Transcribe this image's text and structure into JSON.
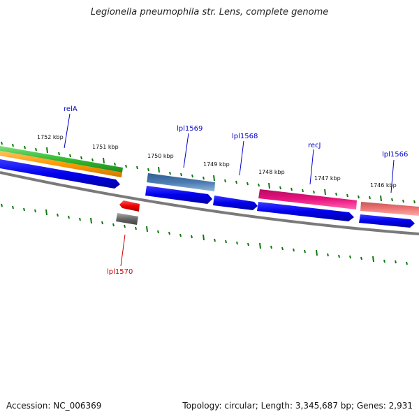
{
  "title": "Legionella pneumophila str. Lens, complete genome",
  "footer": {
    "accession": "Accession: NC_006369",
    "topology": "Topology: circular; Length: 3,345,687 bp; Genes: 2,931"
  },
  "ruler_ticks": [
    "1752 kbp",
    "1751 kbp",
    "1750 kbp",
    "1749 kbp",
    "1748 kbp",
    "1747 kbp",
    "1746 kbp"
  ],
  "gene_labels": [
    {
      "name": "relA",
      "color": "#0000cc"
    },
    {
      "name": "lpl1569",
      "color": "#0000cc"
    },
    {
      "name": "lpl1568",
      "color": "#0000cc"
    },
    {
      "name": "recJ",
      "color": "#0000cc"
    },
    {
      "name": "lpl1566",
      "color": "#0000cc"
    },
    {
      "name": "lpl1570",
      "color": "#cc0000"
    }
  ],
  "colors": {
    "cds_forward": "#0000ee",
    "gene_green": "#33bb33",
    "gene_orange": "#ff9900",
    "gene_steelblue": "#4a7ab0",
    "gene_magenta": "#e8157f",
    "gene_salmon": "#ee7777",
    "gene_red": "#ee0000",
    "gene_gray": "#666666",
    "backbone": "#888888",
    "tick_green": "#117711"
  }
}
